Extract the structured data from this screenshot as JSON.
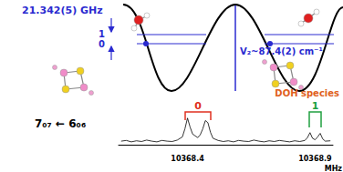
{
  "diagram": {
    "splitting_label": "21.342(5) GHz",
    "levels": [
      "1",
      "0"
    ],
    "barrier_label": "V₂~87.4(2) cm⁻¹"
  },
  "chart_data": {
    "type": "line",
    "color": "#000000",
    "annotations": [
      {
        "text": "7₀₇ ← 6₀₆",
        "color": "#000000"
      },
      {
        "text": "0",
        "color": "#e03020"
      },
      {
        "text": "1",
        "color": "#20a040"
      },
      {
        "text": "DOH species",
        "color": "#e06020"
      }
    ],
    "xlabel": "MHz",
    "x": [
      10368.14,
      10368.16,
      10368.18,
      10368.2,
      10368.22,
      10368.24,
      10368.26,
      10368.28,
      10368.3,
      10368.32,
      10368.34,
      10368.36,
      10368.38,
      10368.39,
      10368.4,
      10368.41,
      10368.42,
      10368.43,
      10368.44,
      10368.45,
      10368.46,
      10368.47,
      10368.48,
      10368.49,
      10368.5,
      10368.52,
      10368.54,
      10368.56,
      10368.58,
      10368.6,
      10368.62,
      10368.64,
      10368.66,
      10368.68,
      10368.7,
      10368.72,
      10368.74,
      10368.76,
      10368.78,
      10368.8,
      10368.82,
      10368.84,
      10368.86,
      10368.87,
      10368.88,
      10368.89,
      10368.9,
      10368.91,
      10368.92,
      10368.93,
      10368.94,
      10368.96
    ],
    "values": [
      0.1,
      0.12,
      0.08,
      0.11,
      0.09,
      0.13,
      0.1,
      0.08,
      0.12,
      0.1,
      0.09,
      0.13,
      0.22,
      0.45,
      0.75,
      0.5,
      0.3,
      0.25,
      0.2,
      0.28,
      0.45,
      0.68,
      0.62,
      0.35,
      0.18,
      0.12,
      0.09,
      0.11,
      0.08,
      0.12,
      0.1,
      0.09,
      0.13,
      0.1,
      0.08,
      0.11,
      0.09,
      0.12,
      0.1,
      0.08,
      0.11,
      0.09,
      0.12,
      0.2,
      0.34,
      0.18,
      0.14,
      0.22,
      0.32,
      0.16,
      0.1,
      0.11
    ],
    "xlim": [
      10368.13,
      10368.97
    ],
    "xticks": [
      10368.4,
      10368.9
    ],
    "ylim": [
      0,
      1
    ],
    "grid": false,
    "tick_labels": "x"
  }
}
